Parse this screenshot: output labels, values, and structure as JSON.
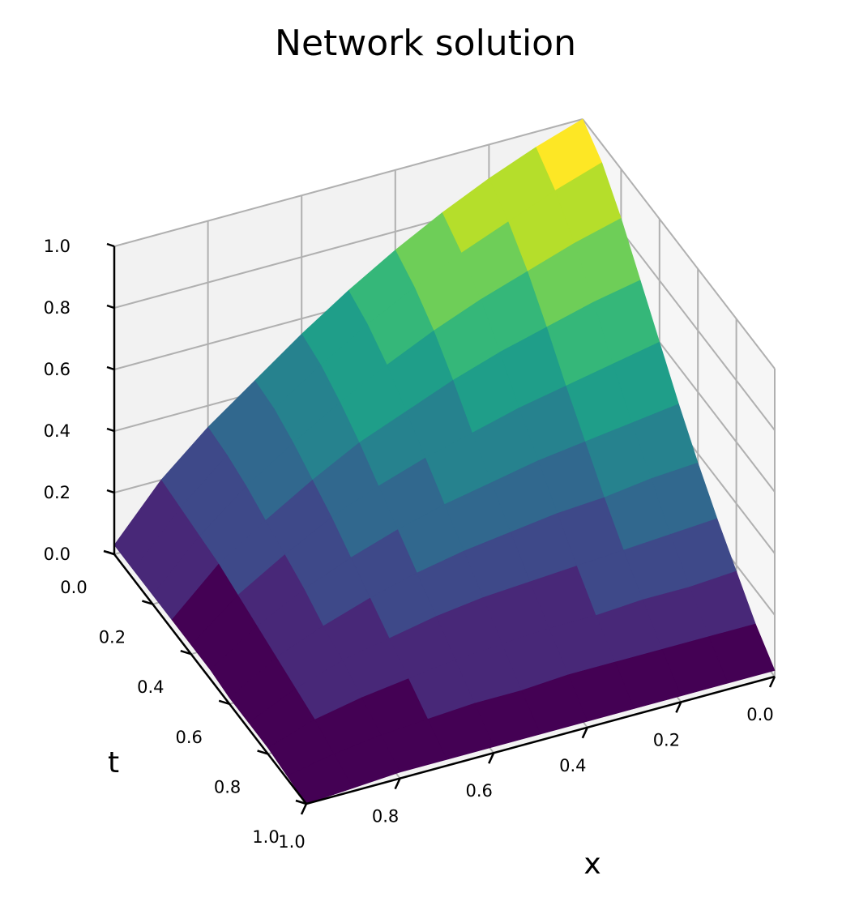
{
  "chart_data": {
    "type": "surface",
    "title": "Network solution",
    "xlabel": "x",
    "ylabel": "t",
    "zlabel": "",
    "xlim": [
      0.0,
      1.0
    ],
    "ylim": [
      0.0,
      1.0
    ],
    "zlim": [
      0.0,
      1.0
    ],
    "x_ticks": [
      "0.0",
      "0.2",
      "0.4",
      "0.6",
      "0.8",
      "1.0"
    ],
    "y_ticks": [
      "0.0",
      "0.2",
      "0.4",
      "0.6",
      "0.8",
      "1.0"
    ],
    "z_ticks": [
      "0.0",
      "0.2",
      "0.4",
      "0.6",
      "0.8",
      "1.0"
    ],
    "grid": true,
    "colormap": "viridis",
    "x": [
      0.0,
      0.1,
      0.2,
      0.3,
      0.4,
      0.5,
      0.6,
      0.7,
      0.8,
      0.9,
      1.0
    ],
    "t": [
      0.0,
      0.1,
      0.2,
      0.3,
      0.4,
      0.5,
      0.6,
      0.7,
      0.8,
      0.9,
      1.0
    ],
    "z_rows_by_t": [
      [
        1.0,
        0.95,
        0.89,
        0.82,
        0.74,
        0.65,
        0.55,
        0.44,
        0.33,
        0.2,
        0.03
      ],
      [
        0.94,
        0.89,
        0.83,
        0.77,
        0.7,
        0.62,
        0.53,
        0.43,
        0.32,
        0.19,
        0.03
      ],
      [
        0.84,
        0.8,
        0.75,
        0.7,
        0.64,
        0.57,
        0.49,
        0.4,
        0.3,
        0.18,
        0.03
      ],
      [
        0.72,
        0.69,
        0.65,
        0.61,
        0.56,
        0.5,
        0.44,
        0.36,
        0.27,
        0.17,
        0.03
      ],
      [
        0.6,
        0.57,
        0.54,
        0.51,
        0.47,
        0.43,
        0.38,
        0.32,
        0.24,
        0.15,
        0.03
      ],
      [
        0.48,
        0.46,
        0.44,
        0.42,
        0.39,
        0.36,
        0.32,
        0.27,
        0.21,
        0.13,
        0.03
      ],
      [
        0.37,
        0.36,
        0.34,
        0.33,
        0.31,
        0.29,
        0.26,
        0.22,
        0.17,
        0.11,
        0.02
      ],
      [
        0.27,
        0.26,
        0.25,
        0.24,
        0.23,
        0.22,
        0.2,
        0.17,
        0.14,
        0.09,
        0.02
      ],
      [
        0.18,
        0.17,
        0.17,
        0.16,
        0.16,
        0.15,
        0.14,
        0.12,
        0.1,
        0.07,
        0.02
      ],
      [
        0.09,
        0.09,
        0.09,
        0.09,
        0.09,
        0.08,
        0.08,
        0.07,
        0.06,
        0.04,
        0.01
      ],
      [
        0.02,
        0.02,
        0.02,
        0.02,
        0.02,
        0.02,
        0.02,
        0.02,
        0.02,
        0.01,
        0.0
      ]
    ]
  },
  "colors": {
    "background": "#ffffff",
    "pane_back": "#f2f2f2",
    "pane_side": "#f6f6f6",
    "pane_floor": "#f3f3f3",
    "grid": "#b0b0b0",
    "axis": "#000000",
    "viridis": [
      "#440154",
      "#482878",
      "#3e4989",
      "#31688e",
      "#26828e",
      "#1f9e89",
      "#35b779",
      "#6ece58",
      "#b5de2b",
      "#fde725"
    ]
  }
}
